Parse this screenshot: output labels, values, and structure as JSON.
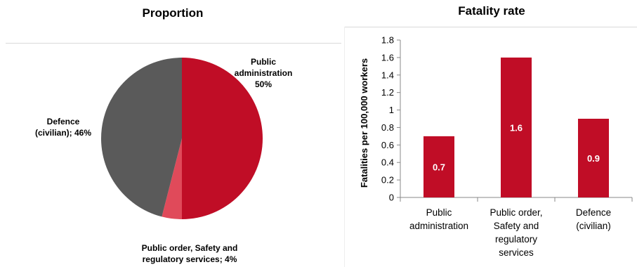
{
  "chart_data": [
    {
      "type": "pie",
      "title": "Proportion",
      "slices": [
        {
          "label_lines": [
            "Public",
            "administration",
            "50%"
          ],
          "value": 50,
          "color": "#c00d26"
        },
        {
          "label_lines": [
            "Public order, Safety and",
            "regulatory services; 4%"
          ],
          "value": 4,
          "color": "#e04a5a"
        },
        {
          "label_lines": [
            "Defence",
            "(civilian); 46%"
          ],
          "value": 46,
          "color": "#5a5a5a"
        }
      ]
    },
    {
      "type": "bar",
      "title": "Fatality rate",
      "ylabel": "Fatalities per 100,000 workers",
      "ylim": [
        0,
        1.8
      ],
      "yticks": [
        "0",
        "0.2",
        "0.4",
        "0.6",
        "0.8",
        "1",
        "1.2",
        "1.4",
        "1.6",
        "1.8"
      ],
      "categories": [
        [
          "Public",
          "administration"
        ],
        [
          "Public order,",
          "Safety and",
          "regulatory",
          "services"
        ],
        [
          "Defence",
          "(civilian)"
        ]
      ],
      "values": [
        0.7,
        1.6,
        0.9
      ],
      "data_labels": [
        "0.7",
        "1.6",
        "0.9"
      ],
      "bar_color": "#c00d26",
      "grid": false
    }
  ]
}
